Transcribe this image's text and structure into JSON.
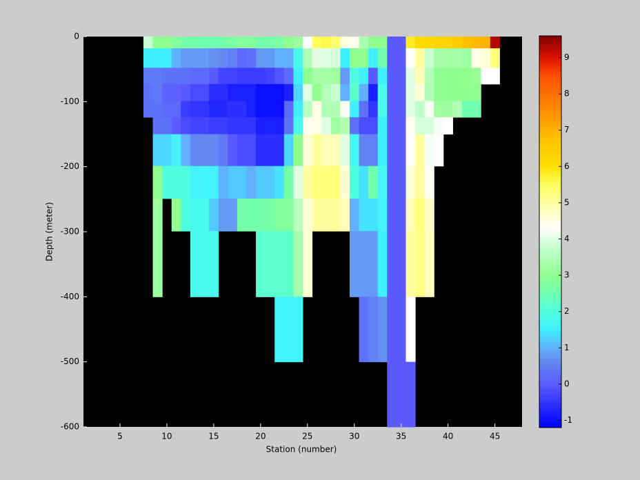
{
  "chart_data": {
    "type": "heatmap",
    "x_label": "Station (number)",
    "y_label": "Depth (meter)",
    "xlim": [
      1.1,
      47.9
    ],
    "ylim": [
      -600,
      0
    ],
    "xticks": [
      5,
      10,
      15,
      20,
      25,
      30,
      35,
      40,
      45
    ],
    "yticks": [
      0,
      -100,
      -200,
      -300,
      -400,
      -500,
      -600
    ],
    "clim": [
      -1.2,
      9.6
    ],
    "cticks": [
      -1,
      0,
      1,
      2,
      3,
      4,
      5,
      6,
      7,
      8,
      9
    ],
    "background": "#000000",
    "colormap": [
      {
        "value": -1.2,
        "color": "#0000f0"
      },
      {
        "value": -1,
        "color": "#0a10ff"
      },
      {
        "value": 0,
        "color": "#5a5aff"
      },
      {
        "value": 0.7,
        "color": "#6490f0"
      },
      {
        "value": 1,
        "color": "#60b0ff"
      },
      {
        "value": 1.5,
        "color": "#40f0ff"
      },
      {
        "value": 2,
        "color": "#50ffe0"
      },
      {
        "value": 2.5,
        "color": "#70ffb0"
      },
      {
        "value": 3,
        "color": "#90ff90"
      },
      {
        "value": 3.7,
        "color": "#c0ffc8"
      },
      {
        "value": 4.3,
        "color": "#ffffff"
      },
      {
        "value": 5,
        "color": "#ffffa0"
      },
      {
        "value": 5.5,
        "color": "#ffff60"
      },
      {
        "value": 6,
        "color": "#ffe000"
      },
      {
        "value": 6.8,
        "color": "#ffc000"
      },
      {
        "value": 7.5,
        "color": "#ff9000"
      },
      {
        "value": 8.5,
        "color": "#ff5000"
      },
      {
        "value": 9,
        "color": "#e01000"
      },
      {
        "value": 9.6,
        "color": "#800000"
      }
    ],
    "x": [
      8,
      9,
      10,
      11,
      12,
      13,
      14,
      15,
      16,
      17,
      18,
      19,
      20,
      21,
      22,
      23,
      24,
      25,
      26,
      27,
      28,
      29,
      30,
      31,
      32,
      33,
      34,
      35,
      36,
      37,
      38,
      39,
      40,
      41,
      42,
      43,
      44,
      45
    ],
    "y_edges": [
      0,
      -18,
      -48,
      -73,
      -99,
      -124,
      -150,
      -199,
      -249,
      -299,
      -400,
      -500,
      -600
    ],
    "z": [
      [
        3.8,
        3.0,
        3.0,
        2.8,
        2.6,
        2.6,
        2.5,
        2.5,
        2.6,
        2.7,
        2.8,
        2.8,
        2.6,
        2.6,
        2.7,
        3.0,
        3.2,
        4.3,
        5.5,
        5.6,
        5.4,
        4.5,
        4.4,
        3.4,
        3.0,
        3.0,
        0.0,
        0.0,
        5.8,
        6.1,
        6.2,
        6.3,
        6.3,
        6.5,
        6.8,
        6.9,
        7.0,
        9.3
      ],
      [
        1.5,
        1.5,
        1.5,
        1.0,
        0.8,
        0.8,
        0.8,
        0.7,
        0.6,
        0.5,
        0.2,
        0.3,
        0.8,
        0.8,
        1.0,
        1.0,
        1.8,
        3.5,
        4.0,
        4.0,
        3.9,
        1.5,
        3.0,
        3.0,
        1.5,
        2.5,
        0.0,
        0.0,
        4.3,
        5.0,
        3.8,
        3.3,
        3.3,
        3.3,
        3.2,
        4.5,
        4.6,
        5.3
      ],
      [
        0.4,
        0.4,
        0.3,
        0.3,
        0.3,
        0.2,
        0.2,
        0.0,
        -0.3,
        -0.3,
        -0.4,
        -0.4,
        -0.4,
        -0.3,
        -0.1,
        0.2,
        1.5,
        3.0,
        3.3,
        3.3,
        3.2,
        0.8,
        2.0,
        1.5,
        0.0,
        1.5,
        0.0,
        0.0,
        4.0,
        4.8,
        3.5,
        3.0,
        3.0,
        3.0,
        3.0,
        3.1,
        4.3,
        4.3
      ],
      [
        0.3,
        0.4,
        0.1,
        0.1,
        0.0,
        -0.2,
        -0.2,
        -0.6,
        -0.6,
        -0.8,
        -0.8,
        -0.8,
        -1.0,
        -1.0,
        -1.0,
        -0.8,
        1.3,
        4.0,
        3.0,
        3.5,
        3.8,
        1.0,
        2.2,
        1.0,
        -0.8,
        1.8,
        0.0,
        0.0,
        4.0,
        4.6,
        3.5,
        3.0,
        3.0,
        3.0,
        3.0,
        3.0,
        null,
        null
      ],
      [
        0.3,
        0.3,
        0.2,
        0.2,
        -0.4,
        -0.5,
        -0.5,
        -0.7,
        -0.7,
        -0.6,
        -0.6,
        -0.8,
        -1.0,
        -1.0,
        -1.0,
        0.2,
        1.5,
        3.6,
        4.5,
        3.5,
        3.5,
        4.2,
        1.5,
        0.3,
        -0.5,
        1.8,
        0.0,
        0.0,
        4.0,
        3.7,
        4.2,
        3.2,
        3.2,
        3.5,
        2.5,
        2.5,
        null,
        null
      ],
      [
        null,
        0.3,
        0.3,
        0.0,
        -0.2,
        -0.3,
        -0.3,
        -0.4,
        -0.4,
        -0.5,
        -0.5,
        -0.5,
        -0.8,
        -0.8,
        -0.8,
        0.3,
        1.8,
        4.4,
        4.5,
        4.0,
        3.2,
        3.5,
        0.3,
        -0.2,
        -0.2,
        1.5,
        0.0,
        0.0,
        4.4,
        3.9,
        3.9,
        4.2,
        4.3,
        null,
        null,
        null,
        null,
        null
      ],
      [
        null,
        1.3,
        1.3,
        1.6,
        1.0,
        0.6,
        0.6,
        0.6,
        0.4,
        0.0,
        -0.2,
        -0.2,
        -0.6,
        -0.6,
        -0.6,
        1.3,
        3.0,
        4.6,
        5.0,
        4.8,
        4.8,
        4.0,
        1.7,
        0.5,
        0.5,
        1.5,
        0.0,
        0.0,
        4.3,
        5.0,
        4.2,
        4.3,
        null,
        null,
        null,
        null,
        null,
        null
      ],
      [
        null,
        3.0,
        2.0,
        2.0,
        2.0,
        1.6,
        1.6,
        1.6,
        1.0,
        1.2,
        1.2,
        1.0,
        1.2,
        1.2,
        1.4,
        2.6,
        4.0,
        5.0,
        5.3,
        5.3,
        5.3,
        4.6,
        2.0,
        1.4,
        2.5,
        1.7,
        0.0,
        0.0,
        4.6,
        5.0,
        4.4,
        null,
        null,
        null,
        null,
        null,
        null,
        null
      ],
      [
        null,
        3.2,
        null,
        3.0,
        2.0,
        1.8,
        1.8,
        1.2,
        0.8,
        0.8,
        2.6,
        2.6,
        2.6,
        2.6,
        2.8,
        2.8,
        3.6,
        4.6,
        5.0,
        5.0,
        5.0,
        4.8,
        1.0,
        1.4,
        1.4,
        1.6,
        0.0,
        0.0,
        4.8,
        5.3,
        4.7,
        null,
        null,
        null,
        null,
        null,
        null,
        null
      ],
      [
        null,
        3.2,
        null,
        null,
        null,
        1.8,
        1.8,
        1.8,
        null,
        null,
        null,
        null,
        2.2,
        2.2,
        2.2,
        2.2,
        3.3,
        4.6,
        null,
        null,
        null,
        null,
        0.8,
        0.8,
        0.8,
        1.5,
        0.0,
        0.0,
        5.0,
        5.2,
        4.8,
        null,
        null,
        null,
        null,
        null,
        null,
        null
      ],
      [
        null,
        null,
        null,
        null,
        null,
        null,
        null,
        null,
        null,
        null,
        null,
        null,
        null,
        null,
        1.6,
        1.6,
        1.6,
        null,
        null,
        null,
        null,
        null,
        null,
        0.3,
        0.5,
        0.7,
        0.0,
        0.0,
        4.3,
        null,
        null,
        null,
        null,
        null,
        null,
        null,
        null,
        null
      ],
      [
        null,
        null,
        null,
        null,
        null,
        null,
        null,
        null,
        null,
        null,
        null,
        null,
        null,
        null,
        null,
        null,
        null,
        null,
        null,
        null,
        null,
        null,
        null,
        null,
        null,
        null,
        0.0,
        0.0,
        0.0,
        null,
        null,
        null,
        null,
        null,
        null,
        null,
        null,
        null
      ]
    ]
  }
}
